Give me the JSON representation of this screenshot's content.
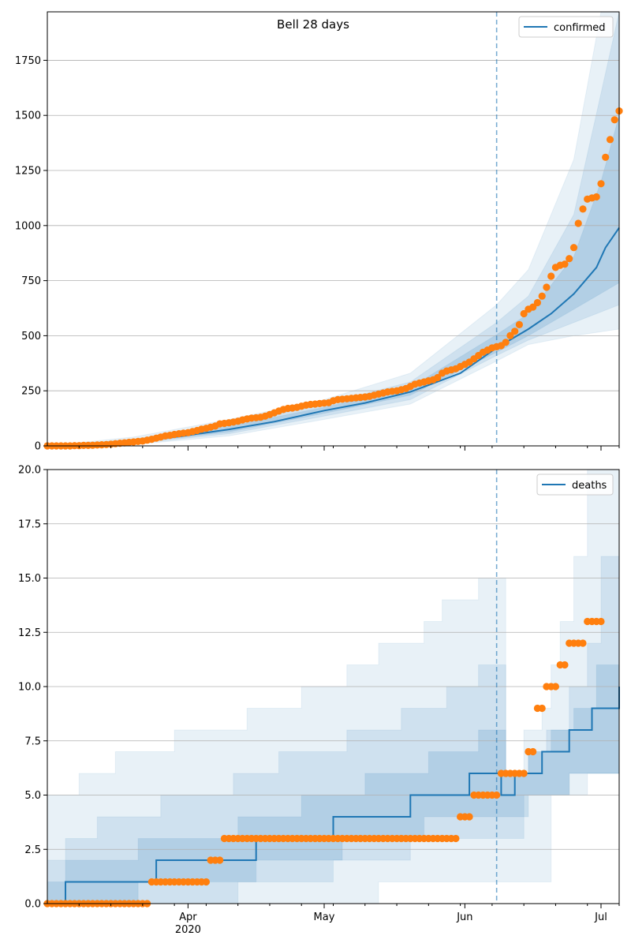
{
  "figure": {
    "title": "Bell 28 days"
  },
  "colors": {
    "model": "#1f77b4",
    "observed": "#ff7f0e",
    "band": "#1f77b4",
    "grid": "#b0b0b0",
    "cutoff": "#1f77b4"
  },
  "chart_data": [
    {
      "type": "line",
      "name": "confirmed-panel",
      "title": "Bell 28 days",
      "xlabel": "",
      "ylabel": "",
      "x_range": [
        "2020-03-01",
        "2020-07-05"
      ],
      "ylim": [
        0,
        1970
      ],
      "y_ticks": [
        0,
        250,
        500,
        750,
        1000,
        1250,
        1500,
        1750
      ],
      "y_tick_labels": [
        "0",
        "250",
        "500",
        "750",
        "1000",
        "1250",
        "1500",
        "1750"
      ],
      "x_tick_labels": [],
      "grid": "horizontal",
      "legend": {
        "position": "top-right",
        "entries": [
          "confirmed"
        ]
      },
      "cutoff_date": "2020-06-08",
      "median": [
        [
          "2020-03-01",
          0
        ],
        [
          "2020-03-10",
          3
        ],
        [
          "2020-03-20",
          18
        ],
        [
          "2020-03-31",
          45
        ],
        [
          "2020-04-10",
          75
        ],
        [
          "2020-04-20",
          110
        ],
        [
          "2020-05-01",
          160
        ],
        [
          "2020-05-10",
          195
        ],
        [
          "2020-05-20",
          245
        ],
        [
          "2020-05-31",
          330
        ],
        [
          "2020-06-08",
          445
        ],
        [
          "2020-06-15",
          530
        ],
        [
          "2020-06-20",
          600
        ],
        [
          "2020-06-25",
          690
        ],
        [
          "2020-06-30",
          810
        ],
        [
          "2020-07-02",
          900
        ],
        [
          "2020-07-05",
          990
        ]
      ],
      "band_outer": {
        "lower": [
          [
            "2020-03-01",
            0
          ],
          [
            "2020-03-20",
            6
          ],
          [
            "2020-04-10",
            45
          ],
          [
            "2020-05-01",
            120
          ],
          [
            "2020-05-20",
            190
          ],
          [
            "2020-06-08",
            385
          ],
          [
            "2020-06-15",
            460
          ],
          [
            "2020-06-25",
            500
          ],
          [
            "2020-07-05",
            530
          ]
        ],
        "upper": [
          [
            "2020-03-01",
            0
          ],
          [
            "2020-03-20",
            40
          ],
          [
            "2020-04-10",
            120
          ],
          [
            "2020-05-01",
            210
          ],
          [
            "2020-05-20",
            330
          ],
          [
            "2020-06-08",
            640
          ],
          [
            "2020-06-15",
            800
          ],
          [
            "2020-06-25",
            1300
          ],
          [
            "2020-07-01",
            1970
          ],
          [
            "2020-07-05",
            1970
          ]
        ]
      },
      "band_mid": {
        "lower": [
          [
            "2020-03-01",
            0
          ],
          [
            "2020-03-20",
            10
          ],
          [
            "2020-04-10",
            55
          ],
          [
            "2020-05-01",
            135
          ],
          [
            "2020-05-20",
            210
          ],
          [
            "2020-06-08",
            410
          ],
          [
            "2020-06-15",
            480
          ],
          [
            "2020-06-25",
            560
          ],
          [
            "2020-07-05",
            640
          ]
        ],
        "upper": [
          [
            "2020-03-01",
            0
          ],
          [
            "2020-03-20",
            30
          ],
          [
            "2020-04-10",
            100
          ],
          [
            "2020-05-01",
            190
          ],
          [
            "2020-05-20",
            290
          ],
          [
            "2020-06-08",
            560
          ],
          [
            "2020-06-15",
            680
          ],
          [
            "2020-06-25",
            1050
          ],
          [
            "2020-07-01",
            1600
          ],
          [
            "2020-07-05",
            1970
          ]
        ]
      },
      "band_inner": {
        "lower": [
          [
            "2020-03-01",
            0
          ],
          [
            "2020-03-20",
            14
          ],
          [
            "2020-04-10",
            63
          ],
          [
            "2020-05-01",
            148
          ],
          [
            "2020-05-20",
            230
          ],
          [
            "2020-06-08",
            425
          ],
          [
            "2020-06-15",
            500
          ],
          [
            "2020-06-25",
            620
          ],
          [
            "2020-07-05",
            740
          ]
        ],
        "upper": [
          [
            "2020-03-01",
            0
          ],
          [
            "2020-03-20",
            24
          ],
          [
            "2020-04-10",
            88
          ],
          [
            "2020-05-01",
            175
          ],
          [
            "2020-05-20",
            265
          ],
          [
            "2020-06-08",
            505
          ],
          [
            "2020-06-15",
            600
          ],
          [
            "2020-06-25",
            860
          ],
          [
            "2020-07-01",
            1200
          ],
          [
            "2020-07-05",
            1500
          ]
        ]
      },
      "observed": {
        "start_date": "2020-03-01",
        "values": [
          0,
          0,
          0,
          0,
          0,
          0,
          1,
          1,
          2,
          2,
          3,
          4,
          5,
          6,
          8,
          10,
          12,
          14,
          16,
          18,
          20,
          22,
          26,
          30,
          35,
          40,
          45,
          48,
          52,
          55,
          58,
          60,
          65,
          70,
          76,
          80,
          85,
          90,
          100,
          102,
          105,
          108,
          112,
          118,
          122,
          126,
          128,
          130,
          135,
          142,
          150,
          158,
          165,
          170,
          172,
          175,
          180,
          185,
          188,
          190,
          192,
          194,
          196,
          205,
          210,
          212,
          214,
          216,
          218,
          220,
          222,
          225,
          230,
          235,
          240,
          245,
          248,
          250,
          255,
          260,
          270,
          280,
          285,
          290,
          295,
          300,
          310,
          330,
          340,
          345,
          350,
          360,
          370,
          380,
          395,
          410,
          425,
          435,
          445,
          450,
          455,
          470,
          500,
          520,
          550,
          600,
          620,
          630,
          650,
          680,
          720,
          770,
          810,
          820,
          825,
          850,
          900,
          1010,
          1075,
          1120,
          1125,
          1130,
          1190,
          1310,
          1390,
          1480,
          1520,
          1525
        ]
      }
    },
    {
      "type": "line",
      "name": "deaths-panel",
      "title": "",
      "xlabel": "",
      "ylabel": "",
      "x_range": [
        "2020-03-01",
        "2020-07-05"
      ],
      "ylim": [
        0,
        20
      ],
      "y_ticks": [
        0,
        2.5,
        5,
        7.5,
        10,
        12.5,
        15,
        17.5,
        20
      ],
      "y_tick_labels": [
        "0.0",
        "2.5",
        "5.0",
        "7.5",
        "10.0",
        "12.5",
        "15.0",
        "17.5",
        "20.0"
      ],
      "x_ticks": [
        {
          "date": "2020-04-01",
          "label": "Apr",
          "sub": "2020"
        },
        {
          "date": "2020-05-01",
          "label": "May",
          "sub": ""
        },
        {
          "date": "2020-06-01",
          "label": "Jun",
          "sub": ""
        },
        {
          "date": "2020-07-01",
          "label": "Jul",
          "sub": ""
        }
      ],
      "grid": "horizontal",
      "legend": {
        "position": "top-right",
        "entries": [
          "deaths"
        ]
      },
      "cutoff_date": "2020-06-08",
      "median_steps": [
        [
          "2020-03-01",
          0
        ],
        [
          "2020-03-05",
          1
        ],
        [
          "2020-03-25",
          2
        ],
        [
          "2020-04-16",
          3
        ],
        [
          "2020-05-03",
          4
        ],
        [
          "2020-05-20",
          5
        ],
        [
          "2020-06-02",
          6
        ],
        [
          "2020-06-09",
          5
        ],
        [
          "2020-06-12",
          6
        ],
        [
          "2020-06-18",
          7
        ],
        [
          "2020-06-24",
          8
        ],
        [
          "2020-06-29",
          9
        ],
        [
          "2020-07-05",
          10
        ]
      ],
      "band_outer": {
        "lower_steps": [
          [
            "2020-03-01",
            0
          ],
          [
            "2020-05-13",
            1
          ],
          [
            "2020-06-08",
            1
          ],
          [
            "2020-06-20",
            5
          ],
          [
            "2020-06-28",
            6
          ],
          [
            "2020-07-05",
            6
          ]
        ],
        "upper_steps": [
          [
            "2020-03-01",
            5
          ],
          [
            "2020-03-08",
            6
          ],
          [
            "2020-03-16",
            7
          ],
          [
            "2020-03-29",
            8
          ],
          [
            "2020-04-14",
            9
          ],
          [
            "2020-04-26",
            10
          ],
          [
            "2020-05-06",
            11
          ],
          [
            "2020-05-13",
            12
          ],
          [
            "2020-05-23",
            13
          ],
          [
            "2020-05-27",
            14
          ],
          [
            "2020-06-04",
            15
          ],
          [
            "2020-06-08",
            15
          ],
          [
            "2020-06-10",
            6
          ],
          [
            "2020-06-14",
            8
          ],
          [
            "2020-06-18",
            9
          ],
          [
            "2020-06-20",
            11
          ],
          [
            "2020-06-22",
            13
          ],
          [
            "2020-06-25",
            16
          ],
          [
            "2020-06-28",
            20
          ],
          [
            "2020-07-05",
            20
          ]
        ]
      },
      "band_mid": {
        "lower_steps": [
          [
            "2020-03-01",
            0
          ],
          [
            "2020-04-12",
            1
          ],
          [
            "2020-05-03",
            2
          ],
          [
            "2020-05-20",
            3
          ],
          [
            "2020-06-08",
            3
          ],
          [
            "2020-06-14",
            5
          ],
          [
            "2020-06-24",
            6
          ],
          [
            "2020-07-05",
            6
          ]
        ],
        "upper_steps": [
          [
            "2020-03-01",
            2
          ],
          [
            "2020-03-05",
            3
          ],
          [
            "2020-03-12",
            4
          ],
          [
            "2020-03-26",
            5
          ],
          [
            "2020-04-11",
            6
          ],
          [
            "2020-04-21",
            7
          ],
          [
            "2020-05-06",
            8
          ],
          [
            "2020-05-18",
            9
          ],
          [
            "2020-05-28",
            10
          ],
          [
            "2020-06-04",
            11
          ],
          [
            "2020-06-08",
            11
          ],
          [
            "2020-06-10",
            6
          ],
          [
            "2020-06-15",
            7
          ],
          [
            "2020-06-19",
            8
          ],
          [
            "2020-06-24",
            10
          ],
          [
            "2020-06-28",
            12
          ],
          [
            "2020-07-01",
            16
          ],
          [
            "2020-07-05",
            19
          ]
        ]
      },
      "band_inner": {
        "lower_steps": [
          [
            "2020-03-01",
            0
          ],
          [
            "2020-03-21",
            1
          ],
          [
            "2020-04-16",
            2
          ],
          [
            "2020-05-05",
            3
          ],
          [
            "2020-05-23",
            4
          ],
          [
            "2020-06-08",
            4
          ],
          [
            "2020-06-15",
            5
          ],
          [
            "2020-06-24",
            6
          ],
          [
            "2020-07-05",
            7
          ]
        ],
        "upper_steps": [
          [
            "2020-03-01",
            1
          ],
          [
            "2020-03-05",
            2
          ],
          [
            "2020-03-21",
            3
          ],
          [
            "2020-04-12",
            4
          ],
          [
            "2020-04-26",
            5
          ],
          [
            "2020-05-10",
            6
          ],
          [
            "2020-05-24",
            7
          ],
          [
            "2020-06-04",
            8
          ],
          [
            "2020-06-08",
            8
          ],
          [
            "2020-06-10",
            6
          ],
          [
            "2020-06-15",
            7
          ],
          [
            "2020-06-20",
            8
          ],
          [
            "2020-06-25",
            9
          ],
          [
            "2020-06-30",
            11
          ],
          [
            "2020-07-05",
            12
          ]
        ]
      },
      "observed": {
        "start_date": "2020-03-01",
        "values": [
          0,
          0,
          0,
          0,
          0,
          0,
          0,
          0,
          0,
          0,
          0,
          0,
          0,
          0,
          0,
          0,
          0,
          0,
          0,
          0,
          0,
          0,
          0,
          1,
          1,
          1,
          1,
          1,
          1,
          1,
          1,
          1,
          1,
          1,
          1,
          1,
          2,
          2,
          2,
          3,
          3,
          3,
          3,
          3,
          3,
          3,
          3,
          3,
          3,
          3,
          3,
          3,
          3,
          3,
          3,
          3,
          3,
          3,
          3,
          3,
          3,
          3,
          3,
          3,
          3,
          3,
          3,
          3,
          3,
          3,
          3,
          3,
          3,
          3,
          3,
          3,
          3,
          3,
          3,
          3,
          3,
          3,
          3,
          3,
          3,
          3,
          3,
          3,
          3,
          3,
          3,
          4,
          4,
          4,
          5,
          5,
          5,
          5,
          5,
          5,
          6,
          6,
          6,
          6,
          6,
          6,
          7,
          7,
          9,
          9,
          10,
          10,
          10,
          11,
          11,
          12,
          12,
          12,
          12,
          13,
          13,
          13,
          13
        ]
      }
    }
  ]
}
